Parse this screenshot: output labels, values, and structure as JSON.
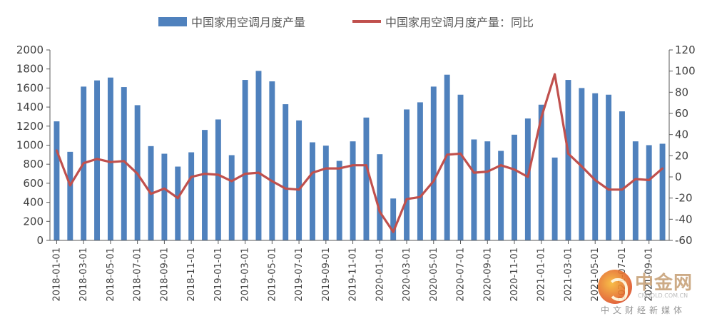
{
  "legend": {
    "bar_label": "中国家用空调月度产量",
    "line_label": "中国家用空调月度产量：同比"
  },
  "watermark": {
    "title": "中金网",
    "domain": "CNGOLD.COM.CN",
    "slogan": "中文财经新媒体"
  },
  "chart_data": {
    "type": "bar",
    "x": [
      "2018-01-01",
      "2018-02-01",
      "2018-03-01",
      "2018-04-01",
      "2018-05-01",
      "2018-06-01",
      "2018-07-01",
      "2018-08-01",
      "2018-09-01",
      "2018-10-01",
      "2018-11-01",
      "2018-12-01",
      "2019-01-01",
      "2019-02-01",
      "2019-03-01",
      "2019-04-01",
      "2019-05-01",
      "2019-06-01",
      "2019-07-01",
      "2019-08-01",
      "2019-09-01",
      "2019-10-01",
      "2019-11-01",
      "2019-12-01",
      "2020-01-01",
      "2020-02-01",
      "2020-03-01",
      "2020-04-01",
      "2020-05-01",
      "2020-06-01",
      "2020-07-01",
      "2020-08-01",
      "2020-09-01",
      "2020-10-01",
      "2020-11-01",
      "2020-12-01",
      "2021-01-01",
      "2021-02-01",
      "2021-03-01",
      "2021-04-01",
      "2021-05-01",
      "2021-06-01",
      "2021-07-01",
      "2021-08-01",
      "2021-09-01",
      "2021-10-01"
    ],
    "x_tick_labels": [
      "2018-01-01",
      "2018-03-01",
      "2018-05-01",
      "2018-07-01",
      "2018-09-01",
      "2018-11-01",
      "2019-01-01",
      "2019-03-01",
      "2019-05-01",
      "2019-07-01",
      "2019-09-01",
      "2019-11-01",
      "2020-01-01",
      "2020-03-01",
      "2020-05-01",
      "2020-07-01",
      "2020-09-01",
      "2020-11-01",
      "2021-01-01",
      "2021-03-01",
      "2021-05-01",
      "2021-07-01",
      "2021-09-01"
    ],
    "series": [
      {
        "name": "中国家用空调月度产量",
        "type": "bar",
        "axis": "left",
        "color": "#4f81bd",
        "values": [
          1250,
          930,
          1615,
          1680,
          1710,
          1610,
          1420,
          990,
          910,
          775,
          925,
          1160,
          1270,
          895,
          1685,
          1780,
          1670,
          1430,
          1260,
          1030,
          995,
          835,
          1040,
          1290,
          905,
          440,
          1375,
          1450,
          1615,
          1740,
          1530,
          1060,
          1040,
          940,
          1110,
          1280,
          1425,
          870,
          1685,
          1600,
          1545,
          1530,
          1355,
          1040,
          1000,
          1015
        ]
      },
      {
        "name": "中国家用空调月度产量：同比",
        "type": "line",
        "axis": "right",
        "color": "#c0504d",
        "values": [
          25,
          -8,
          13,
          17,
          14,
          15,
          3,
          -16,
          -11,
          -20,
          0,
          3,
          2,
          -4,
          3,
          4,
          -4,
          -11,
          -12,
          4,
          8,
          8,
          11,
          11,
          -33,
          -52,
          -21,
          -19,
          -4,
          21,
          22,
          4,
          5,
          11,
          7,
          0,
          56,
          97,
          22,
          10,
          -3,
          -12,
          -12,
          -2,
          -3,
          8
        ]
      }
    ],
    "y_left": {
      "min": 0,
      "max": 2000,
      "ticks": [
        0,
        200,
        400,
        600,
        800,
        1000,
        1200,
        1400,
        1600,
        1800,
        2000
      ]
    },
    "y_right": {
      "min": -60,
      "max": 120,
      "ticks": [
        -60,
        -40,
        -20,
        0,
        20,
        40,
        60,
        80,
        100,
        120
      ]
    },
    "legend_position": "top",
    "grid": false
  }
}
